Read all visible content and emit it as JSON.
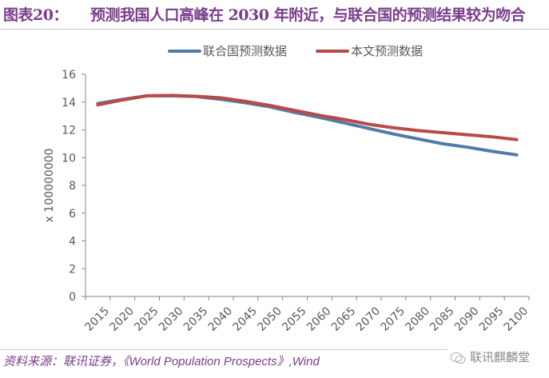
{
  "header": {
    "figure_number": "图表20：",
    "title": "预测我国人口高峰在 2030 年附近，与联合国的预测结果较为吻合"
  },
  "footer": {
    "source": "资料来源：联讯证券，《World Population Prospects》,Wind",
    "brand": "联讯麒麟堂",
    "brand_icon": "wechat-icon"
  },
  "colors": {
    "title": "#7a3d8c",
    "series_un": "#4f7ba8",
    "series_this": "#b94a48"
  },
  "chart_data": {
    "type": "line",
    "title": "",
    "xlabel": "",
    "ylabel": "x 100000000",
    "ylim": [
      0,
      16
    ],
    "yticks": [
      "0",
      "2",
      "4",
      "6",
      "8",
      "10",
      "12",
      "14",
      "16"
    ],
    "grid": false,
    "legend_position": "top",
    "categories": [
      "2015",
      "2020",
      "2025",
      "2030",
      "2035",
      "2040",
      "2045",
      "2050",
      "2055",
      "2060",
      "2065",
      "2070",
      "2075",
      "2080",
      "2085",
      "2090",
      "2095",
      "2100"
    ],
    "series": [
      {
        "name": "联合国预测数据",
        "color": "#4f7ba8",
        "values": [
          13.9,
          14.2,
          14.45,
          14.45,
          14.4,
          14.2,
          13.95,
          13.65,
          13.25,
          12.9,
          12.5,
          12.1,
          11.7,
          11.35,
          11.0,
          10.75,
          10.45,
          10.2
        ]
      },
      {
        "name": "本文预测数据",
        "color": "#b94a48",
        "values": [
          13.8,
          14.15,
          14.45,
          14.48,
          14.42,
          14.3,
          14.05,
          13.75,
          13.4,
          13.05,
          12.75,
          12.4,
          12.15,
          11.95,
          11.8,
          11.65,
          11.5,
          11.3
        ]
      }
    ]
  }
}
